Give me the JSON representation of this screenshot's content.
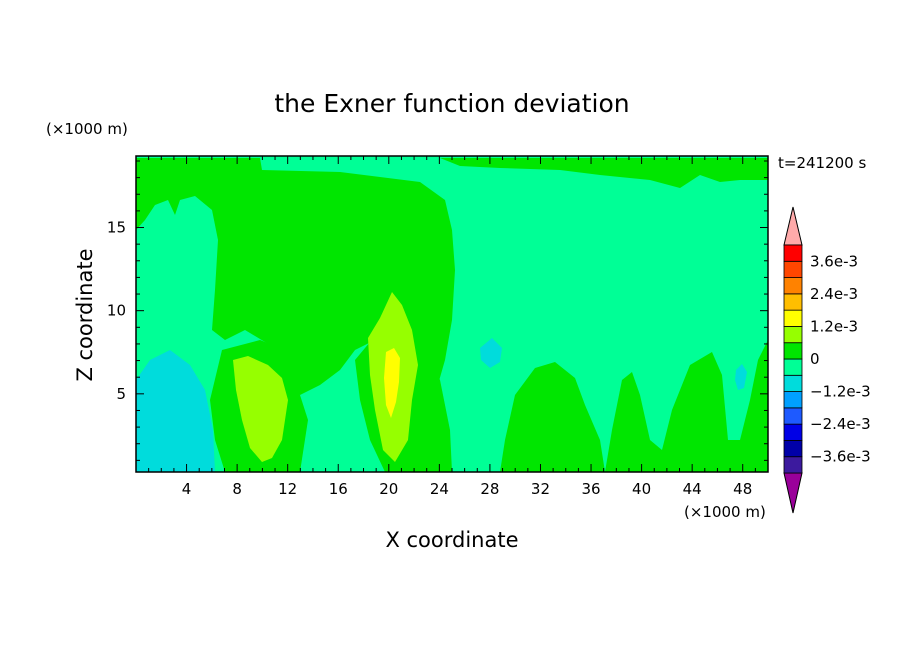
{
  "chart_data": {
    "type": "heatmap",
    "title": "the Exner function deviation",
    "xlabel": "X coordinate",
    "ylabel": "Z coordinate",
    "x_unit": "(×1000 m)",
    "y_unit": "(×1000 m)",
    "time_label": "t=241200 s",
    "xlim": [
      0,
      50
    ],
    "ylim": [
      0.3,
      19.3
    ],
    "x_ticks": [
      4,
      8,
      12,
      16,
      20,
      24,
      28,
      32,
      36,
      40,
      44,
      48
    ],
    "y_ticks": [
      5,
      10,
      15
    ],
    "colorbar": {
      "tick_labels": [
        "3.6e-3",
        "2.4e-3",
        "1.2e-3",
        "0",
        "−1.2e-3",
        "−2.4e-3",
        "−3.6e-3"
      ],
      "levels": [
        -0.0042,
        -0.0036,
        -0.003,
        -0.0024,
        -0.0018,
        -0.0012,
        -0.0006,
        0,
        0.0006,
        0.0012,
        0.0018,
        0.0024,
        0.003,
        0.0036,
        0.0042
      ],
      "colors": [
        "#9a009a",
        "#3c1a9e",
        "#0000a8",
        "#0000e6",
        "#1e5aff",
        "#00a0ff",
        "#00dcdc",
        "#00ff96",
        "#00e600",
        "#96ff00",
        "#ffff00",
        "#ffbe00",
        "#ff8200",
        "#ff4600",
        "#ff0000",
        "#ffaaaa"
      ]
    },
    "regions": [
      {
        "band": "0 to 6e-4",
        "color": "#00ff96",
        "note": "background"
      },
      {
        "band": "6e-4 to 1.2e-3",
        "color": "#00e600",
        "note": "upper-middle dome and lower lobes"
      },
      {
        "band": "1.2e-3 to 1.8e-3",
        "color": "#96ff00",
        "note": "lower lobes near x=10 and x=20"
      },
      {
        "band": "1.8e-3 to 2.4e-3",
        "color": "#ffff00",
        "note": "small core near x=20, z=6"
      },
      {
        "band": "-6e-4 to 0",
        "color": "#00dcdc",
        "note": "lower-left near x=2, z=4"
      }
    ]
  }
}
